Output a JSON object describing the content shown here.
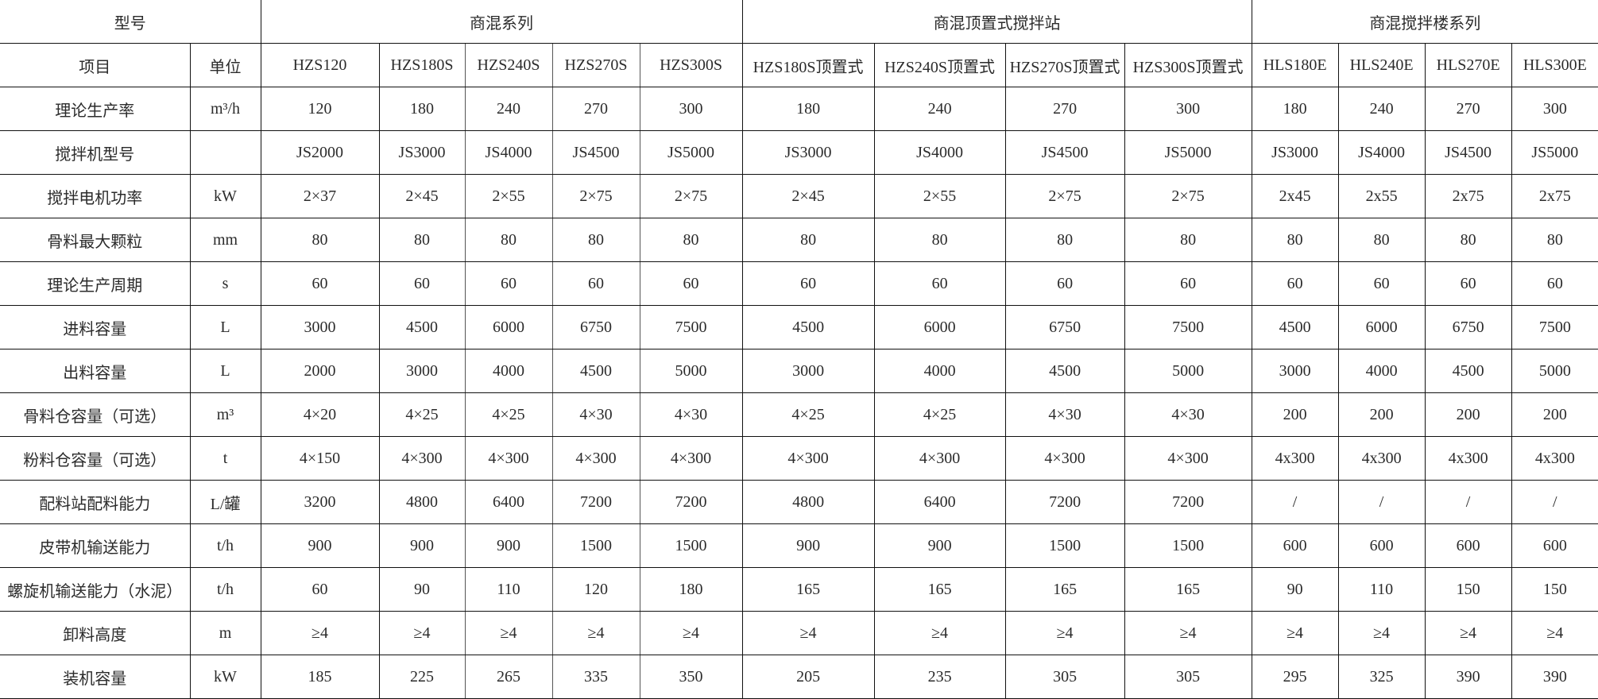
{
  "header": {
    "model_label": "型号",
    "groups": [
      {
        "label": "商混系列",
        "span": 5
      },
      {
        "label": "商混顶置式搅拌站",
        "span": 4
      },
      {
        "label": "商混搅拌楼系列",
        "span": 4
      }
    ]
  },
  "columns": {
    "item_label": "项目",
    "unit_label": "单位",
    "models": [
      "HZS120",
      "HZS180S",
      "HZS240S",
      "HZS270S",
      "HZS300S",
      "HZS180S顶置式",
      "HZS240S顶置式",
      "HZS270S顶置式",
      "HZS300S顶置式",
      "HLS180E",
      "HLS240E",
      "HLS270E",
      "HLS300E"
    ]
  },
  "rows": [
    {
      "item": "理论生产率",
      "unit": "m³/h",
      "values": [
        "120",
        "180",
        "240",
        "270",
        "300",
        "180",
        "240",
        "270",
        "300",
        "180",
        "240",
        "270",
        "300"
      ]
    },
    {
      "item": "搅拌机型号",
      "unit": "",
      "values": [
        "JS2000",
        "JS3000",
        "JS4000",
        "JS4500",
        "JS5000",
        "JS3000",
        "JS4000",
        "JS4500",
        "JS5000",
        "JS3000",
        "JS4000",
        "JS4500",
        "JS5000"
      ]
    },
    {
      "item": "搅拌电机功率",
      "unit": "kW",
      "values": [
        "2×37",
        "2×45",
        "2×55",
        "2×75",
        "2×75",
        "2×45",
        "2×55",
        "2×75",
        "2×75",
        "2x45",
        "2x55",
        "2x75",
        "2x75"
      ]
    },
    {
      "item": "骨料最大颗粒",
      "unit": "mm",
      "values": [
        "80",
        "80",
        "80",
        "80",
        "80",
        "80",
        "80",
        "80",
        "80",
        "80",
        "80",
        "80",
        "80"
      ]
    },
    {
      "item": "理论生产周期",
      "unit": "s",
      "values": [
        "60",
        "60",
        "60",
        "60",
        "60",
        "60",
        "60",
        "60",
        "60",
        "60",
        "60",
        "60",
        "60"
      ]
    },
    {
      "item": "进料容量",
      "unit": "L",
      "values": [
        "3000",
        "4500",
        "6000",
        "6750",
        "7500",
        "4500",
        "6000",
        "6750",
        "7500",
        "4500",
        "6000",
        "6750",
        "7500"
      ]
    },
    {
      "item": "出料容量",
      "unit": "L",
      "values": [
        "2000",
        "3000",
        "4000",
        "4500",
        "5000",
        "3000",
        "4000",
        "4500",
        "5000",
        "3000",
        "4000",
        "4500",
        "5000"
      ]
    },
    {
      "item": "骨料仓容量（可选）",
      "unit": "m³",
      "values": [
        "4×20",
        "4×25",
        "4×25",
        "4×30",
        "4×30",
        "4×25",
        "4×25",
        "4×30",
        "4×30",
        "200",
        "200",
        "200",
        "200"
      ]
    },
    {
      "item": "粉料仓容量（可选）",
      "unit": "t",
      "values": [
        "4×150",
        "4×300",
        "4×300",
        "4×300",
        "4×300",
        "4×300",
        "4×300",
        "4×300",
        "4×300",
        "4x300",
        "4x300",
        "4x300",
        "4x300"
      ]
    },
    {
      "item": "配料站配料能力",
      "unit": "L/罐",
      "values": [
        "3200",
        "4800",
        "6400",
        "7200",
        "7200",
        "4800",
        "6400",
        "7200",
        "7200",
        "/",
        "/",
        "/",
        "/"
      ]
    },
    {
      "item": "皮带机输送能力",
      "unit": "t/h",
      "values": [
        "900",
        "900",
        "900",
        "1500",
        "1500",
        "900",
        "900",
        "1500",
        "1500",
        "600",
        "600",
        "600",
        "600"
      ]
    },
    {
      "item": "螺旋机输送能力（水泥）",
      "unit": "t/h",
      "values": [
        "60",
        "90",
        "110",
        "120",
        "180",
        "165",
        "165",
        "165",
        "165",
        "90",
        "110",
        "150",
        "150"
      ]
    },
    {
      "item": "卸料高度",
      "unit": "m",
      "values": [
        "≥4",
        "≥4",
        "≥4",
        "≥4",
        "≥4",
        "≥4",
        "≥4",
        "≥4",
        "≥4",
        "≥4",
        "≥4",
        "≥4",
        "≥4"
      ]
    },
    {
      "item": "装机容量",
      "unit": "kW",
      "values": [
        "185",
        "225",
        "265",
        "335",
        "350",
        "205",
        "235",
        "305",
        "305",
        "295",
        "325",
        "390",
        "390"
      ]
    }
  ]
}
